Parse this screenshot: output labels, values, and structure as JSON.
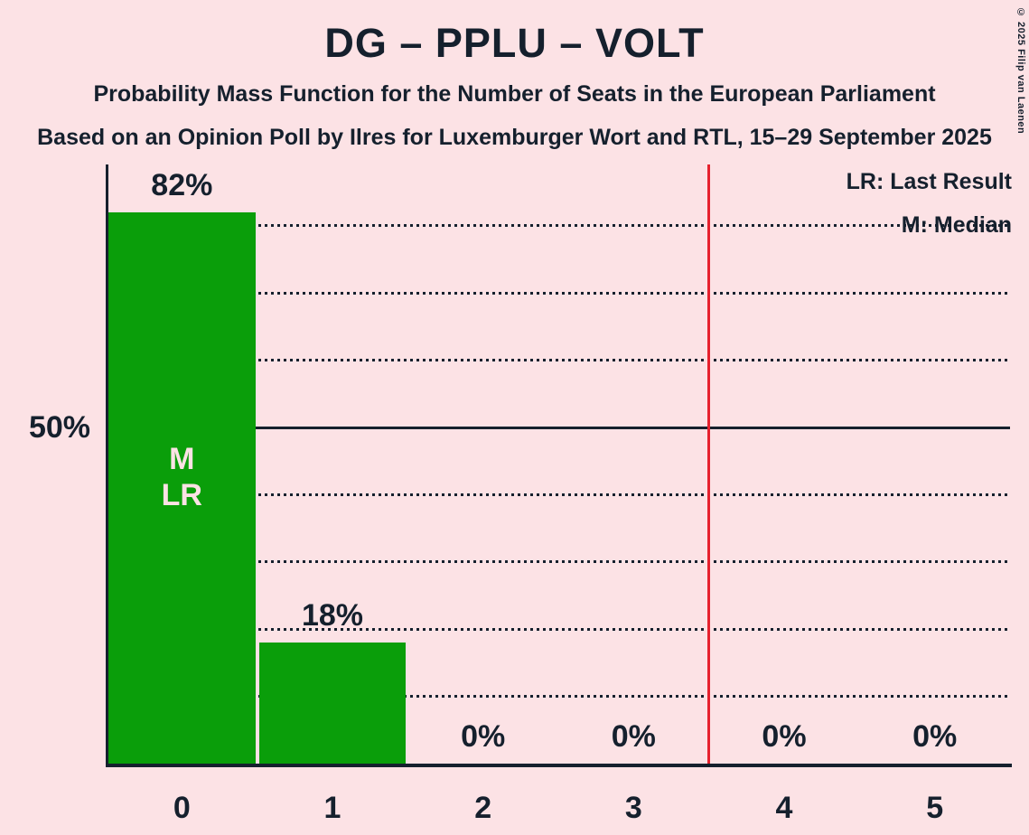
{
  "title": "DG – PPLU – VOLT",
  "subtitle_line1": "Probability Mass Function for the Number of Seats in the European Parliament",
  "subtitle_line2": "Based on an Opinion Poll by Ilres for Luxemburger Wort and RTL, 15–29 September 2025",
  "copyright": "© 2025 Filip van Laenen",
  "legend": {
    "lr": "LR: Last Result",
    "m": "M: Median"
  },
  "y_axis": {
    "label_50": "50%"
  },
  "colors": {
    "background": "#FCE2E5",
    "text": "#15202D",
    "bar": "#0A9E0A",
    "red": "#E6212E"
  },
  "chart_data": {
    "type": "bar",
    "title": "DG – PPLU – VOLT",
    "categories": [
      "0",
      "1",
      "2",
      "3",
      "4",
      "5"
    ],
    "values": [
      82,
      18,
      0,
      0,
      0,
      0
    ],
    "value_labels": [
      "82%",
      "18%",
      "0%",
      "0%",
      "0%",
      "0%"
    ],
    "xlabel": "",
    "ylabel": "",
    "ylim_percent": [
      0,
      89
    ],
    "y_gridlines_percent": [
      10,
      20,
      30,
      40,
      50,
      60,
      70,
      80
    ],
    "solid_gridline_percent": 50,
    "y_tick_labels": [
      {
        "percent": 50,
        "label": "50%"
      }
    ],
    "grid": "dotted-horizontal",
    "legend_position": "top-right",
    "red_vertical_line_at_x": 3.5,
    "annotations": [
      {
        "bar_index": 0,
        "lines": [
          "M",
          "LR"
        ]
      }
    ]
  }
}
